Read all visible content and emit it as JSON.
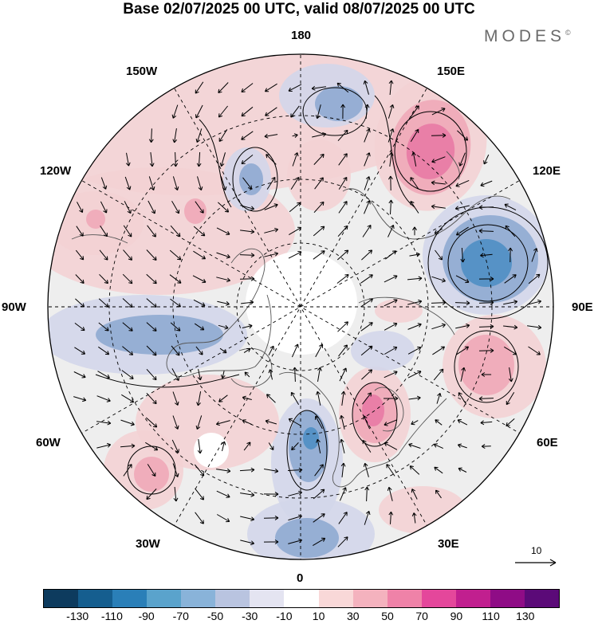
{
  "title": "Base 02/07/2025 00 UTC, valid 08/07/2025 00 UTC",
  "logo": "MODES",
  "logo_mark": "©",
  "longitude_labels": {
    "top": "180",
    "top_left": "150W",
    "top_right": "150E",
    "upper_left": "120W",
    "upper_right": "120E",
    "left": "90W",
    "right": "90E",
    "lower_left": "60W",
    "lower_right": "60E",
    "bottom_left": "30W",
    "bottom_right": "30E",
    "bottom": "0"
  },
  "reference_vector": {
    "value": "10"
  },
  "colorbar": {
    "colors": [
      "#0d3b5e",
      "#155e8f",
      "#2a7fb8",
      "#5aa3cc",
      "#89b3d9",
      "#b9c4e0",
      "#e4e4f1",
      "#ffffff",
      "#f9d8d8",
      "#f4b2be",
      "#ef82a8",
      "#e4479b",
      "#c11f8f",
      "#8f0c86",
      "#5b0a78"
    ],
    "tick_labels": [
      "-130",
      "-110",
      "-90",
      "-70",
      "-50",
      "-30",
      "-10",
      "10",
      "30",
      "50",
      "70",
      "90",
      "110",
      "130"
    ]
  },
  "anomaly_colors": {
    "strong_negative": "#4f8fc4",
    "moderate_negative": "#8faad2",
    "weak_negative": "#d3d6ea",
    "neutral": "#eeeeee",
    "weak_positive": "#f3d2d4",
    "moderate_positive": "#f0a9b8",
    "strong_positive": "#e87aa5",
    "land_outline": "#555555"
  }
}
